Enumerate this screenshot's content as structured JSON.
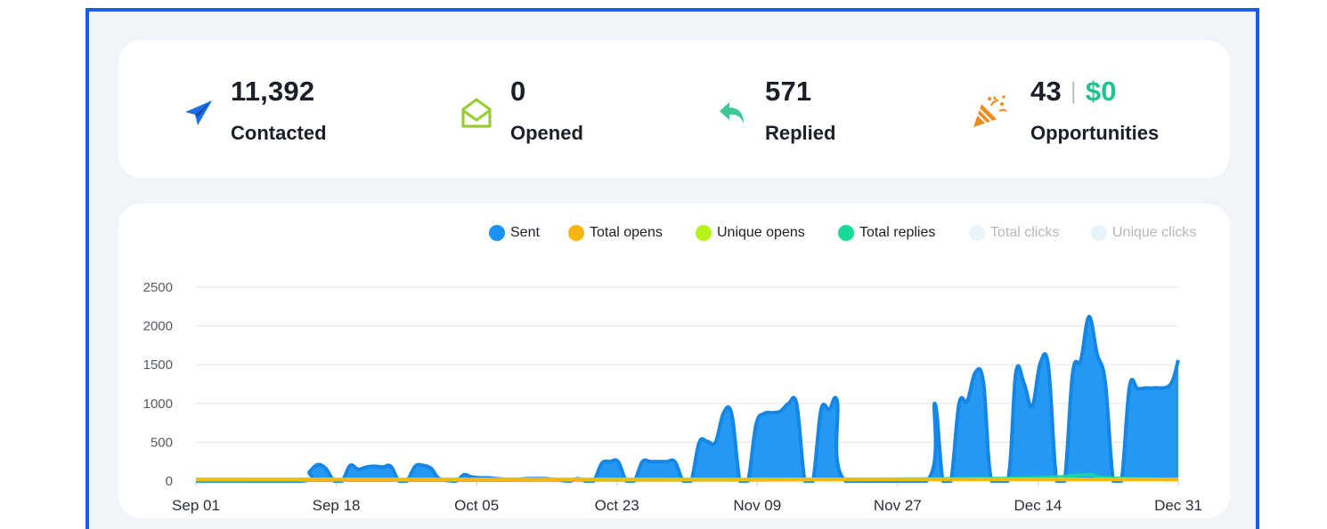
{
  "stats": [
    {
      "icon": "paper-plane-icon",
      "value": "11,392",
      "label": "Contacted"
    },
    {
      "icon": "open-envelope-icon",
      "value": "0",
      "label": "Opened"
    },
    {
      "icon": "reply-arrow-icon",
      "value": "571",
      "label": "Replied"
    },
    {
      "icon": "party-popper-icon",
      "value": "43",
      "money": "$0",
      "label": "Opportunities"
    }
  ],
  "colors": {
    "accent_frame": "#1a5cf0",
    "sent": "#1992f2",
    "total_opens": "#f7b512",
    "unique_opens": "#b7f21a",
    "total_replies": "#17d99a",
    "total_clicks": "#e6f3f8",
    "unique_clicks": "#e2f2fb",
    "contacted_icon": "#1e6fe8",
    "opened_icon": "#9acd32",
    "replied_icon": "#3cc994",
    "opportunities_icon": "#f08a1c"
  },
  "legend": [
    {
      "name": "Sent",
      "color": "#1992f2",
      "muted": false
    },
    {
      "name": "Total opens",
      "color": "#f7b512",
      "muted": false
    },
    {
      "name": "Unique opens",
      "color": "#b7f21a",
      "muted": false
    },
    {
      "name": "Total replies",
      "color": "#17d99a",
      "muted": false
    },
    {
      "name": "Total clicks",
      "color": "#e6f3f8",
      "muted": true
    },
    {
      "name": "Unique clicks",
      "color": "#e2f2fb",
      "muted": true
    }
  ],
  "chart_data": {
    "type": "area",
    "title": "",
    "xlabel": "",
    "ylabel": "",
    "ylim": [
      0,
      2500
    ],
    "yticks": [
      0,
      500,
      1000,
      1500,
      2000,
      2500
    ],
    "grid": true,
    "legend_position": "top-right",
    "x_tick_labels": [
      "Sep 01",
      "Sep 18",
      "Oct 05",
      "Oct 23",
      "Nov 09",
      "Nov 27",
      "Dec 14",
      "Dec 31"
    ],
    "series": [
      {
        "name": "Sent",
        "points": [
          [
            "2023-09-01",
            0
          ],
          [
            "2023-09-14",
            0
          ],
          [
            "2023-09-15",
            120
          ],
          [
            "2023-09-16",
            210
          ],
          [
            "2023-09-17",
            160
          ],
          [
            "2023-09-18",
            0
          ],
          [
            "2023-09-19",
            0
          ],
          [
            "2023-09-20",
            200
          ],
          [
            "2023-09-21",
            150
          ],
          [
            "2023-09-22",
            180
          ],
          [
            "2023-09-23",
            190
          ],
          [
            "2023-09-24",
            180
          ],
          [
            "2023-09-25",
            190
          ],
          [
            "2023-09-26",
            0
          ],
          [
            "2023-09-27",
            0
          ],
          [
            "2023-09-28",
            190
          ],
          [
            "2023-09-29",
            200
          ],
          [
            "2023-09-30",
            160
          ],
          [
            "2023-10-01",
            30
          ],
          [
            "2023-10-03",
            0
          ],
          [
            "2023-10-04",
            80
          ],
          [
            "2023-10-05",
            50
          ],
          [
            "2023-10-06",
            40
          ],
          [
            "2023-10-07",
            40
          ],
          [
            "2023-10-08",
            30
          ],
          [
            "2023-10-10",
            20
          ],
          [
            "2023-10-12",
            30
          ],
          [
            "2023-10-14",
            30
          ],
          [
            "2023-10-15",
            20
          ],
          [
            "2023-10-17",
            0
          ],
          [
            "2023-10-18",
            30
          ],
          [
            "2023-10-19",
            0
          ],
          [
            "2023-10-20",
            0
          ],
          [
            "2023-10-21",
            230
          ],
          [
            "2023-10-22",
            250
          ],
          [
            "2023-10-23",
            250
          ],
          [
            "2023-10-24",
            0
          ],
          [
            "2023-10-25",
            0
          ],
          [
            "2023-10-26",
            250
          ],
          [
            "2023-10-27",
            250
          ],
          [
            "2023-10-28",
            250
          ],
          [
            "2023-10-29",
            250
          ],
          [
            "2023-10-30",
            250
          ],
          [
            "2023-10-31",
            0
          ],
          [
            "2023-11-01",
            0
          ],
          [
            "2023-11-02",
            500
          ],
          [
            "2023-11-03",
            510
          ],
          [
            "2023-11-04",
            500
          ],
          [
            "2023-11-05",
            880
          ],
          [
            "2023-11-06",
            860
          ],
          [
            "2023-11-07",
            0
          ],
          [
            "2023-11-08",
            0
          ],
          [
            "2023-11-09",
            730
          ],
          [
            "2023-11-10",
            870
          ],
          [
            "2023-11-11",
            880
          ],
          [
            "2023-11-12",
            900
          ],
          [
            "2023-11-13",
            1000
          ],
          [
            "2023-11-14",
            990
          ],
          [
            "2023-11-15",
            0
          ],
          [
            "2023-11-16",
            0
          ],
          [
            "2023-11-17",
            920
          ],
          [
            "2023-11-18",
            920
          ],
          [
            "2023-11-19",
            1020
          ],
          [
            "2023-11-20",
            0
          ],
          [
            "2023-11-30",
            0
          ],
          [
            "2023-12-01",
            1000
          ],
          [
            "2023-12-02",
            0
          ],
          [
            "2023-12-03",
            0
          ],
          [
            "2023-12-04",
            1000
          ],
          [
            "2023-12-05",
            1030
          ],
          [
            "2023-12-06",
            1400
          ],
          [
            "2023-12-07",
            1270
          ],
          [
            "2023-12-08",
            0
          ],
          [
            "2023-12-10",
            0
          ],
          [
            "2023-12-11",
            1400
          ],
          [
            "2023-12-12",
            1260
          ],
          [
            "2023-12-13",
            960
          ],
          [
            "2023-12-14",
            1520
          ],
          [
            "2023-12-15",
            1480
          ],
          [
            "2023-12-16",
            0
          ],
          [
            "2023-12-17",
            0
          ],
          [
            "2023-12-18",
            1400
          ],
          [
            "2023-12-19",
            1560
          ],
          [
            "2023-12-20",
            2120
          ],
          [
            "2023-12-21",
            1640
          ],
          [
            "2023-12-22",
            1280
          ],
          [
            "2023-12-23",
            0
          ],
          [
            "2023-12-24",
            0
          ],
          [
            "2023-12-25",
            1220
          ],
          [
            "2023-12-26",
            1190
          ],
          [
            "2023-12-27",
            1200
          ],
          [
            "2023-12-28",
            1200
          ],
          [
            "2023-12-30",
            1240
          ],
          [
            "2023-12-31",
            1560
          ]
        ]
      },
      {
        "name": "Total replies",
        "points": [
          [
            "2023-09-01",
            10
          ],
          [
            "2023-11-09",
            15
          ],
          [
            "2023-12-05",
            30
          ],
          [
            "2023-12-14",
            40
          ],
          [
            "2023-12-20",
            80
          ],
          [
            "2023-12-22",
            40
          ],
          [
            "2023-12-31",
            20
          ]
        ]
      },
      {
        "name": "Unique opens",
        "points": [
          [
            "2023-09-01",
            20
          ],
          [
            "2023-12-31",
            20
          ]
        ]
      },
      {
        "name": "Total opens",
        "points": [
          [
            "2023-09-01",
            20
          ],
          [
            "2023-12-31",
            20
          ]
        ]
      }
    ]
  }
}
